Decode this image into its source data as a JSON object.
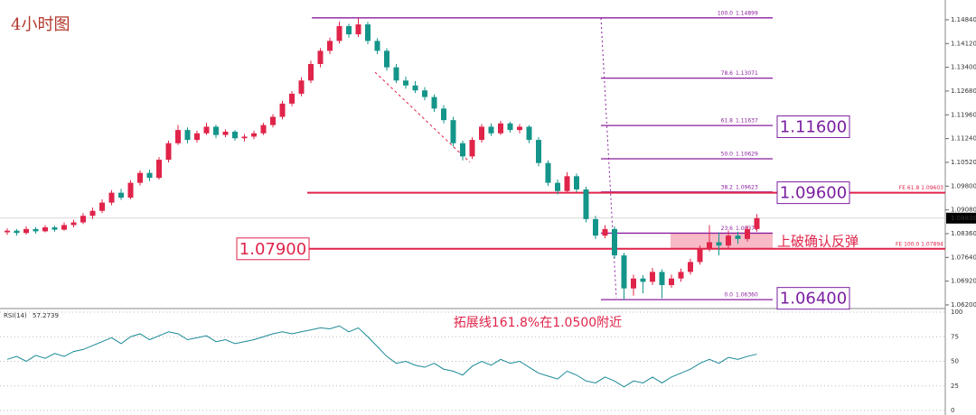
{
  "title": "4小时图",
  "annotations": {
    "breakout": "上破确认反弹",
    "extension": "拓展线161.8%在1.0500附近"
  },
  "chart_data": [
    {
      "type": "candlestick",
      "bull_color": "#e0244a",
      "bear_color": "#14958a",
      "ylim": [
        1.0609,
        1.1544
      ],
      "yticks": [
        {
          "value": 1.062,
          "label": "1.06200"
        },
        {
          "value": 1.0692,
          "label": "1.06920"
        },
        {
          "value": 1.0764,
          "label": "1.07640"
        },
        {
          "value": 1.0836,
          "label": "1.08360"
        },
        {
          "value": 1.0908,
          "label": "1.09080"
        },
        {
          "value": 1.098,
          "label": "1.09800"
        },
        {
          "value": 1.1052,
          "label": "1.10520"
        },
        {
          "value": 1.1124,
          "label": "1.11240"
        },
        {
          "value": 1.1196,
          "label": "1.11960"
        },
        {
          "value": 1.1268,
          "label": "1.12680"
        },
        {
          "value": 1.134,
          "label": "1.13400"
        },
        {
          "value": 1.1412,
          "label": "1.14120"
        },
        {
          "value": 1.1484,
          "label": "1.14840"
        }
      ],
      "current_price": {
        "value": 1.0883,
        "label": "1.08830"
      },
      "candles": [
        [
          1.084,
          1.0852,
          1.0832,
          1.0845
        ],
        [
          1.0845,
          1.085,
          1.083,
          1.0838
        ],
        [
          1.0838,
          1.0858,
          1.0833,
          1.085
        ],
        [
          1.085,
          1.0856,
          1.0836,
          1.0843
        ],
        [
          1.0843,
          1.0862,
          1.084,
          1.0855
        ],
        [
          1.0855,
          1.086,
          1.0842,
          1.0848
        ],
        [
          1.0848,
          1.087,
          1.0845,
          1.0862
        ],
        [
          1.0862,
          1.0878,
          1.0855,
          1.087
        ],
        [
          1.087,
          1.0898,
          1.0865,
          1.089
        ],
        [
          1.089,
          1.0915,
          1.088,
          1.0905
        ],
        [
          1.0905,
          1.094,
          1.0898,
          1.093
        ],
        [
          1.093,
          1.0968,
          1.0922,
          1.096
        ],
        [
          1.096,
          1.0972,
          1.0938,
          1.0945
        ],
        [
          1.0945,
          1.0998,
          1.094,
          1.099
        ],
        [
          1.099,
          1.1028,
          1.0982,
          1.102
        ],
        [
          1.102,
          1.103,
          1.0995,
          1.1005
        ],
        [
          1.1005,
          1.1068,
          1.1,
          1.106
        ],
        [
          1.106,
          1.1118,
          1.1052,
          1.111
        ],
        [
          1.111,
          1.1165,
          1.1105,
          1.115
        ],
        [
          1.115,
          1.1158,
          1.111,
          1.112
        ],
        [
          1.112,
          1.1148,
          1.1112,
          1.114
        ],
        [
          1.114,
          1.1172,
          1.1135,
          1.116
        ],
        [
          1.116,
          1.1166,
          1.1125,
          1.1135
        ],
        [
          1.1135,
          1.1152,
          1.1128,
          1.1145
        ],
        [
          1.1145,
          1.115,
          1.1118,
          1.1125
        ],
        [
          1.1125,
          1.1138,
          1.1115,
          1.113
        ],
        [
          1.113,
          1.1148,
          1.1122,
          1.114
        ],
        [
          1.114,
          1.1172,
          1.1135,
          1.1165
        ],
        [
          1.1165,
          1.1198,
          1.1158,
          1.119
        ],
        [
          1.119,
          1.1238,
          1.1182,
          1.123
        ],
        [
          1.123,
          1.1268,
          1.1222,
          1.126
        ],
        [
          1.126,
          1.131,
          1.1252,
          1.13
        ],
        [
          1.13,
          1.136,
          1.1292,
          1.135
        ],
        [
          1.135,
          1.1398,
          1.134,
          1.139
        ],
        [
          1.139,
          1.143,
          1.138,
          1.142
        ],
        [
          1.142,
          1.1478,
          1.1412,
          1.1465
        ],
        [
          1.1465,
          1.1472,
          1.143,
          1.144
        ],
        [
          1.144,
          1.149,
          1.1432,
          1.147
        ],
        [
          1.147,
          1.1478,
          1.141,
          1.142
        ],
        [
          1.142,
          1.1428,
          1.138,
          1.139
        ],
        [
          1.139,
          1.1398,
          1.133,
          1.134
        ],
        [
          1.134,
          1.135,
          1.1292,
          1.13
        ],
        [
          1.13,
          1.1312,
          1.1275,
          1.1285
        ],
        [
          1.1285,
          1.1298,
          1.1262,
          1.127
        ],
        [
          1.127,
          1.128,
          1.124,
          1.125
        ],
        [
          1.125,
          1.1258,
          1.1205,
          1.1215
        ],
        [
          1.1215,
          1.1225,
          1.117,
          1.118
        ],
        [
          1.118,
          1.119,
          1.11,
          1.111
        ],
        [
          1.111,
          1.1118,
          1.1058,
          1.107
        ],
        [
          1.107,
          1.1128,
          1.1062,
          1.112
        ],
        [
          1.112,
          1.1168,
          1.1112,
          1.116
        ],
        [
          1.116,
          1.117,
          1.1132,
          1.114
        ],
        [
          1.114,
          1.1178,
          1.1135,
          1.117
        ],
        [
          1.117,
          1.1175,
          1.1142,
          1.115
        ],
        [
          1.115,
          1.1168,
          1.114,
          1.116
        ],
        [
          1.116,
          1.1165,
          1.111,
          1.112
        ],
        [
          1.112,
          1.1128,
          1.104,
          1.105
        ],
        [
          1.105,
          1.1058,
          1.098,
          1.099
        ],
        [
          1.099,
          1.1,
          1.0955,
          1.0965
        ],
        [
          1.0965,
          1.1022,
          1.096,
          1.101
        ],
        [
          1.101,
          1.1018,
          1.0962,
          1.097
        ],
        [
          1.097,
          1.0978,
          1.087,
          1.088
        ],
        [
          1.088,
          1.089,
          1.082,
          1.083
        ],
        [
          1.083,
          1.0862,
          1.0822,
          1.085
        ],
        [
          1.085,
          1.0858,
          1.076,
          1.077
        ],
        [
          1.077,
          1.0778,
          1.0636,
          1.067
        ],
        [
          1.067,
          1.0712,
          1.0648,
          1.07
        ],
        [
          1.07,
          1.071,
          1.0655,
          1.069
        ],
        [
          1.069,
          1.0732,
          1.068,
          1.072
        ],
        [
          1.072,
          1.0728,
          1.064,
          1.068
        ],
        [
          1.068,
          1.0712,
          1.0672,
          1.07
        ],
        [
          1.07,
          1.073,
          1.069,
          1.072
        ],
        [
          1.072,
          1.076,
          1.0712,
          1.075
        ],
        [
          1.075,
          1.08,
          1.0742,
          1.079
        ],
        [
          1.079,
          1.0862,
          1.0782,
          1.081
        ],
        [
          1.081,
          1.084,
          1.077,
          1.08
        ],
        [
          1.08,
          1.0845,
          1.0792,
          1.083
        ],
        [
          1.083,
          1.0842,
          1.0805,
          1.082
        ],
        [
          1.082,
          1.086,
          1.0812,
          1.085
        ],
        [
          1.085,
          1.0895,
          1.0842,
          1.0883
        ]
      ],
      "fib_color": "#8b1f9e",
      "fib_levels": [
        {
          "level": "100.0",
          "price": 1.14899
        },
        {
          "level": "78.6",
          "price": 1.13071
        },
        {
          "level": "61.8",
          "price": 1.11637
        },
        {
          "level": "50.0",
          "price": 1.10629
        },
        {
          "level": "38.2",
          "price": 1.09623
        },
        {
          "level": "23.6",
          "price": 1.08375
        },
        {
          "level": "0.0",
          "price": {
            "value": 1.0636,
            "label": "1.06360"
          }
        }
      ],
      "zone": {
        "from": 1.079,
        "to": 1.08375,
        "color": "#f5a9b8"
      },
      "key_levels": [
        {
          "price": {
            "value": 1.116,
            "label": "1.11600"
          },
          "box_color": "#7b1fa2",
          "side": "right"
        },
        {
          "price": {
            "value": 1.096,
            "label": "1.09600"
          },
          "box_color": "#7b1fa2",
          "side": "right",
          "line_color": "#e0244a",
          "note": "FE 61.8 1.09603"
        },
        {
          "price": {
            "value": 1.079,
            "label": "1.07900"
          },
          "box_color": "#e0244a",
          "side": "left",
          "line_color": "#e0244a",
          "note": "FE 100.0 1.07894"
        },
        {
          "price": {
            "value": 1.064,
            "label": "1.06400"
          },
          "box_color": "#7b1fa2",
          "side": "right"
        }
      ]
    },
    {
      "type": "line",
      "label": "RSI(14)",
      "current": 57.2739,
      "color": "#1a8a96",
      "ylim": [
        0,
        100
      ],
      "yticks": [
        100,
        75,
        50,
        25,
        0
      ],
      "values": [
        52,
        55,
        50,
        56,
        53,
        58,
        55,
        60,
        62,
        66,
        70,
        74,
        68,
        75,
        78,
        72,
        76,
        80,
        78,
        72,
        74,
        76,
        70,
        72,
        68,
        70,
        72,
        75,
        78,
        80,
        78,
        80,
        82,
        84,
        83,
        86,
        80,
        84,
        75,
        65,
        55,
        48,
        50,
        46,
        44,
        48,
        42,
        40,
        36,
        45,
        50,
        46,
        52,
        48,
        50,
        44,
        38,
        35,
        32,
        40,
        36,
        30,
        28,
        34,
        30,
        24,
        30,
        28,
        34,
        28,
        34,
        38,
        42,
        48,
        52,
        48,
        54,
        52,
        55,
        57.2739
      ]
    }
  ]
}
